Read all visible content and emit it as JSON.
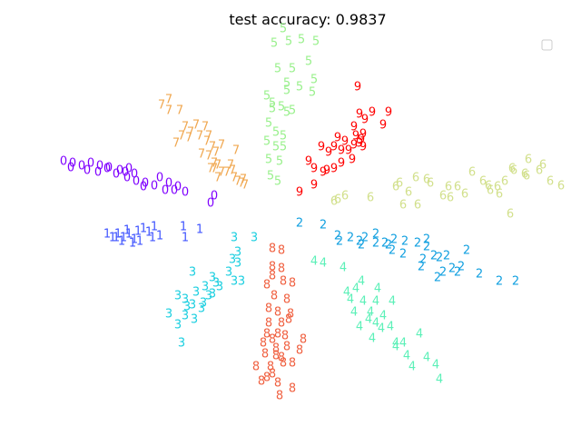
{
  "chart_data": {
    "type": "scatter",
    "title": "test accuracy: 0.9837",
    "xlabel": "",
    "ylabel": "",
    "xlim": [
      0,
      640
    ],
    "ylim": [
      0,
      480
    ],
    "axes_visible": false,
    "grid": false,
    "legend": {
      "placement": "top-right",
      "entries": []
    },
    "series": [
      {
        "label": "0",
        "color": "#7f00ff",
        "points": [
          [
            70,
            178
          ],
          [
            80,
            180
          ],
          [
            90,
            183
          ],
          [
            100,
            180
          ],
          [
            110,
            183
          ],
          [
            120,
            185
          ],
          [
            78,
            185
          ],
          [
            96,
            188
          ],
          [
            108,
            190
          ],
          [
            118,
            186
          ],
          [
            128,
            192
          ],
          [
            138,
            190
          ],
          [
            148,
            192
          ],
          [
            132,
            188
          ],
          [
            140,
            196
          ],
          [
            150,
            200
          ],
          [
            160,
            202
          ],
          [
            170,
            205
          ],
          [
            176,
            196
          ],
          [
            186,
            202
          ],
          [
            196,
            206
          ],
          [
            204,
            212
          ],
          [
            158,
            206
          ],
          [
            182,
            210
          ],
          [
            192,
            210
          ],
          [
            236,
            216
          ],
          [
            232,
            224
          ],
          [
            142,
            186
          ]
        ]
      },
      {
        "label": "1",
        "color": "#4256ff",
        "points": [
          [
            118,
            258
          ],
          [
            124,
            262
          ],
          [
            130,
            258
          ],
          [
            136,
            262
          ],
          [
            142,
            258
          ],
          [
            148,
            264
          ],
          [
            152,
            255
          ],
          [
            158,
            252
          ],
          [
            164,
            256
          ],
          [
            170,
            250
          ],
          [
            176,
            260
          ],
          [
            146,
            268
          ],
          [
            154,
            266
          ],
          [
            140,
            254
          ],
          [
            202,
            250
          ],
          [
            220,
            253
          ],
          [
            204,
            262
          ],
          [
            134,
            266
          ],
          [
            168,
            262
          ],
          [
            128,
            262
          ]
        ]
      },
      {
        "label": "2",
        "color": "#12a0e0",
        "points": [
          [
            330,
            246
          ],
          [
            356,
            248
          ],
          [
            372,
            260
          ],
          [
            386,
            262
          ],
          [
            396,
            266
          ],
          [
            402,
            262
          ],
          [
            414,
            258
          ],
          [
            424,
            268
          ],
          [
            434,
            264
          ],
          [
            446,
            266
          ],
          [
            460,
            268
          ],
          [
            470,
            272
          ],
          [
            484,
            284
          ],
          [
            466,
            286
          ],
          [
            478,
            282
          ],
          [
            492,
            282
          ],
          [
            498,
            296
          ],
          [
            508,
            294
          ],
          [
            514,
            276
          ],
          [
            528,
            302
          ],
          [
            550,
            310
          ],
          [
            568,
            310
          ],
          [
            482,
            306
          ],
          [
            464,
            294
          ],
          [
            432,
            276
          ],
          [
            444,
            280
          ],
          [
            470,
            264
          ],
          [
            374,
            266
          ],
          [
            398,
            270
          ],
          [
            414,
            268
          ],
          [
            428,
            270
          ],
          [
            488,
            300
          ],
          [
            504,
            300
          ]
        ]
      },
      {
        "label": "3",
        "color": "#1ccfe0",
        "points": [
          [
            258,
            262
          ],
          [
            280,
            262
          ],
          [
            262,
            278
          ],
          [
            256,
            286
          ],
          [
            262,
            290
          ],
          [
            252,
            300
          ],
          [
            234,
            306
          ],
          [
            212,
            300
          ],
          [
            238,
            312
          ],
          [
            242,
            316
          ],
          [
            258,
            310
          ],
          [
            266,
            310
          ],
          [
            226,
            316
          ],
          [
            216,
            322
          ],
          [
            234,
            324
          ],
          [
            224,
            334
          ],
          [
            196,
            326
          ],
          [
            204,
            330
          ],
          [
            212,
            336
          ],
          [
            222,
            340
          ],
          [
            186,
            346
          ],
          [
            204,
            348
          ],
          [
            214,
            352
          ],
          [
            196,
            358
          ],
          [
            200,
            378
          ],
          [
            230,
            326
          ],
          [
            206,
            338
          ]
        ]
      },
      {
        "label": "4",
        "color": "#5cf0b8",
        "points": [
          [
            346,
            288
          ],
          [
            356,
            290
          ],
          [
            378,
            295
          ],
          [
            398,
            310
          ],
          [
            416,
            318
          ],
          [
            392,
            318
          ],
          [
            382,
            322
          ],
          [
            386,
            330
          ],
          [
            400,
            332
          ],
          [
            408,
            344
          ],
          [
            432,
            332
          ],
          [
            414,
            332
          ],
          [
            390,
            344
          ],
          [
            414,
            356
          ],
          [
            422,
            348
          ],
          [
            406,
            352
          ],
          [
            396,
            360
          ],
          [
            430,
            360
          ],
          [
            410,
            373
          ],
          [
            436,
            378
          ],
          [
            444,
            378
          ],
          [
            462,
            368
          ],
          [
            436,
            382
          ],
          [
            448,
            392
          ],
          [
            470,
            394
          ],
          [
            454,
            404
          ],
          [
            480,
            402
          ],
          [
            484,
            418
          ],
          [
            420,
            362
          ]
        ]
      },
      {
        "label": "5",
        "color": "#99f08c",
        "points": [
          [
            312,
            32
          ],
          [
            302,
            48
          ],
          [
            318,
            46
          ],
          [
            332,
            44
          ],
          [
            348,
            46
          ],
          [
            306,
            76
          ],
          [
            322,
            76
          ],
          [
            340,
            68
          ],
          [
            316,
            92
          ],
          [
            330,
            96
          ],
          [
            346,
            88
          ],
          [
            294,
            106
          ],
          [
            344,
            102
          ],
          [
            316,
            100
          ],
          [
            316,
            124
          ],
          [
            300,
            114
          ],
          [
            310,
            118
          ],
          [
            322,
            122
          ],
          [
            296,
            136
          ],
          [
            304,
            146
          ],
          [
            312,
            150
          ],
          [
            294,
            156
          ],
          [
            304,
            162
          ],
          [
            312,
            162
          ],
          [
            296,
            176
          ],
          [
            308,
            178
          ],
          [
            298,
            194
          ],
          [
            306,
            200
          ],
          [
            300,
            120
          ]
        ]
      },
      {
        "label": "6",
        "color": "#d2e08c",
        "points": [
          [
            582,
            176
          ],
          [
            598,
            182
          ],
          [
            566,
            188
          ],
          [
            580,
            194
          ],
          [
            594,
            188
          ],
          [
            520,
            190
          ],
          [
            458,
            196
          ],
          [
            470,
            198
          ],
          [
            440,
            202
          ],
          [
            450,
            212
          ],
          [
            474,
            202
          ],
          [
            494,
            206
          ],
          [
            504,
            206
          ],
          [
            532,
            200
          ],
          [
            538,
            205
          ],
          [
            548,
            206
          ],
          [
            556,
            200
          ],
          [
            564,
            186
          ],
          [
            606,
            200
          ],
          [
            618,
            205
          ],
          [
            512,
            214
          ],
          [
            540,
            210
          ],
          [
            550,
            214
          ],
          [
            488,
            216
          ],
          [
            496,
            218
          ],
          [
            380,
            216
          ],
          [
            408,
            218
          ],
          [
            436,
            206
          ],
          [
            444,
            226
          ],
          [
            460,
            226
          ],
          [
            368,
            222
          ],
          [
            372,
            220
          ],
          [
            562,
            236
          ],
          [
            578,
            192
          ]
        ]
      },
      {
        "label": "7",
        "color": "#f0a852",
        "points": [
          [
            186,
            110
          ],
          [
            178,
            116
          ],
          [
            186,
            122
          ],
          [
            198,
            122
          ],
          [
            204,
            140
          ],
          [
            216,
            138
          ],
          [
            226,
            140
          ],
          [
            210,
            146
          ],
          [
            220,
            150
          ],
          [
            230,
            150
          ],
          [
            208,
            152
          ],
          [
            194,
            158
          ],
          [
            228,
            156
          ],
          [
            234,
            162
          ],
          [
            244,
            160
          ],
          [
            238,
            168
          ],
          [
            222,
            170
          ],
          [
            230,
            172
          ],
          [
            260,
            166
          ],
          [
            236,
            180
          ],
          [
            240,
            182
          ],
          [
            254,
            182
          ],
          [
            236,
            186
          ],
          [
            244,
            190
          ],
          [
            250,
            190
          ],
          [
            256,
            188
          ],
          [
            240,
            196
          ],
          [
            258,
            196
          ],
          [
            268,
            198
          ],
          [
            262,
            200
          ],
          [
            266,
            202
          ],
          [
            270,
            204
          ],
          [
            232,
            186
          ],
          [
            200,
            150
          ]
        ]
      },
      {
        "label": "8",
        "color": "#f06040",
        "points": [
          [
            300,
            274
          ],
          [
            310,
            276
          ],
          [
            300,
            294
          ],
          [
            310,
            296
          ],
          [
            300,
            304
          ],
          [
            312,
            310
          ],
          [
            322,
            312
          ],
          [
            294,
            314
          ],
          [
            302,
            326
          ],
          [
            316,
            330
          ],
          [
            296,
            340
          ],
          [
            306,
            344
          ],
          [
            320,
            346
          ],
          [
            296,
            356
          ],
          [
            310,
            356
          ],
          [
            318,
            352
          ],
          [
            294,
            368
          ],
          [
            306,
            368
          ],
          [
            314,
            370
          ],
          [
            300,
            374
          ],
          [
            290,
            378
          ],
          [
            304,
            384
          ],
          [
            316,
            382
          ],
          [
            334,
            374
          ],
          [
            330,
            386
          ],
          [
            292,
            390
          ],
          [
            304,
            392
          ],
          [
            310,
            394
          ],
          [
            282,
            404
          ],
          [
            298,
            404
          ],
          [
            312,
            400
          ],
          [
            322,
            400
          ],
          [
            294,
            416
          ],
          [
            288,
            420
          ],
          [
            300,
            412
          ],
          [
            306,
            422
          ],
          [
            308,
            436
          ],
          [
            322,
            428
          ]
        ]
      },
      {
        "label": "9",
        "color": "#ff0000",
        "points": [
          [
            394,
            96
          ],
          [
            396,
            126
          ],
          [
            410,
            124
          ],
          [
            428,
            124
          ],
          [
            402,
            132
          ],
          [
            422,
            138
          ],
          [
            390,
            140
          ],
          [
            400,
            148
          ],
          [
            392,
            150
          ],
          [
            372,
            152
          ],
          [
            380,
            156
          ],
          [
            398,
            154
          ],
          [
            368,
            162
          ],
          [
            376,
            166
          ],
          [
            390,
            160
          ],
          [
            400,
            162
          ],
          [
            384,
            166
          ],
          [
            354,
            162
          ],
          [
            362,
            168
          ],
          [
            340,
            178
          ],
          [
            346,
            186
          ],
          [
            360,
            188
          ],
          [
            330,
            212
          ],
          [
            346,
            204
          ],
          [
            356,
            190
          ],
          [
            368,
            186
          ],
          [
            376,
            180
          ],
          [
            388,
            176
          ],
          [
            396,
            158
          ]
        ]
      }
    ]
  }
}
